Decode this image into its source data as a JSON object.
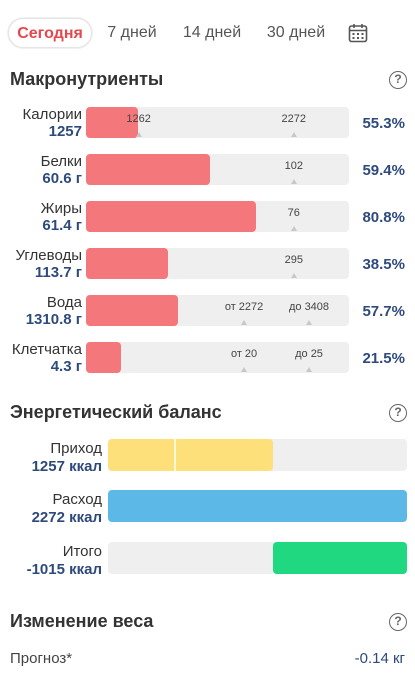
{
  "tabs": [
    {
      "label": "Сегодня",
      "active": true
    },
    {
      "label": "7 дней",
      "active": false
    },
    {
      "label": "14 дней",
      "active": false
    },
    {
      "label": "30 дней",
      "active": false
    }
  ],
  "macros": {
    "title": "Макронутриенты",
    "help": "?",
    "rows": [
      {
        "name": "Калории",
        "value": "1257",
        "percent": "55.3%",
        "fill": 0.197,
        "markers": [
          {
            "label": "1262",
            "pos": 0.2
          },
          {
            "label": "2272",
            "pos": 0.79
          }
        ]
      },
      {
        "name": "Белки",
        "value": "60.6 г",
        "percent": "59.4%",
        "fill": 0.47,
        "markers": [
          {
            "label": "102",
            "pos": 0.79
          }
        ]
      },
      {
        "name": "Жиры",
        "value": "61.4 г",
        "percent": "80.8%",
        "fill": 0.646,
        "markers": [
          {
            "label": "76",
            "pos": 0.79
          }
        ]
      },
      {
        "name": "Углеводы",
        "value": "113.7 г",
        "percent": "38.5%",
        "fill": 0.312,
        "markers": [
          {
            "label": "295",
            "pos": 0.79
          }
        ]
      },
      {
        "name": "Вода",
        "value": "1310.8 г",
        "percent": "57.7%",
        "fill": 0.35,
        "markers": [
          {
            "label": "от 2272",
            "pos": 0.601
          },
          {
            "label": "до 3408",
            "pos": 0.848
          }
        ]
      },
      {
        "name": "Клетчатка",
        "value": "4.3 г",
        "percent": "21.5%",
        "fill": 0.132,
        "markers": [
          {
            "label": "от 20",
            "pos": 0.601
          },
          {
            "label": "до 25",
            "pos": 0.848
          }
        ]
      }
    ]
  },
  "energy": {
    "title": "Энергетический баланс",
    "help": "?",
    "rows": [
      {
        "name": "Приход",
        "value": "1257 ккал",
        "color": "#fde07a",
        "start": 0.0,
        "fill": 0.553,
        "split": 0.22
      },
      {
        "name": "Расход",
        "value": "2272 ккал",
        "color": "#5cb8e6",
        "start": 0.0,
        "fill": 1.0
      },
      {
        "name": "Итого",
        "value": "-1015 ккал",
        "color": "#1fd87f",
        "start": 0.553,
        "fill": 0.447
      }
    ]
  },
  "weight": {
    "title": "Изменение веса",
    "help": "?",
    "forecast_label": "Прогноз*",
    "forecast_value": "-0.14 кг"
  },
  "colors": {
    "accent": "#e5484d",
    "macro_fill": "#f4777b",
    "value_text": "#2e4a7d"
  }
}
